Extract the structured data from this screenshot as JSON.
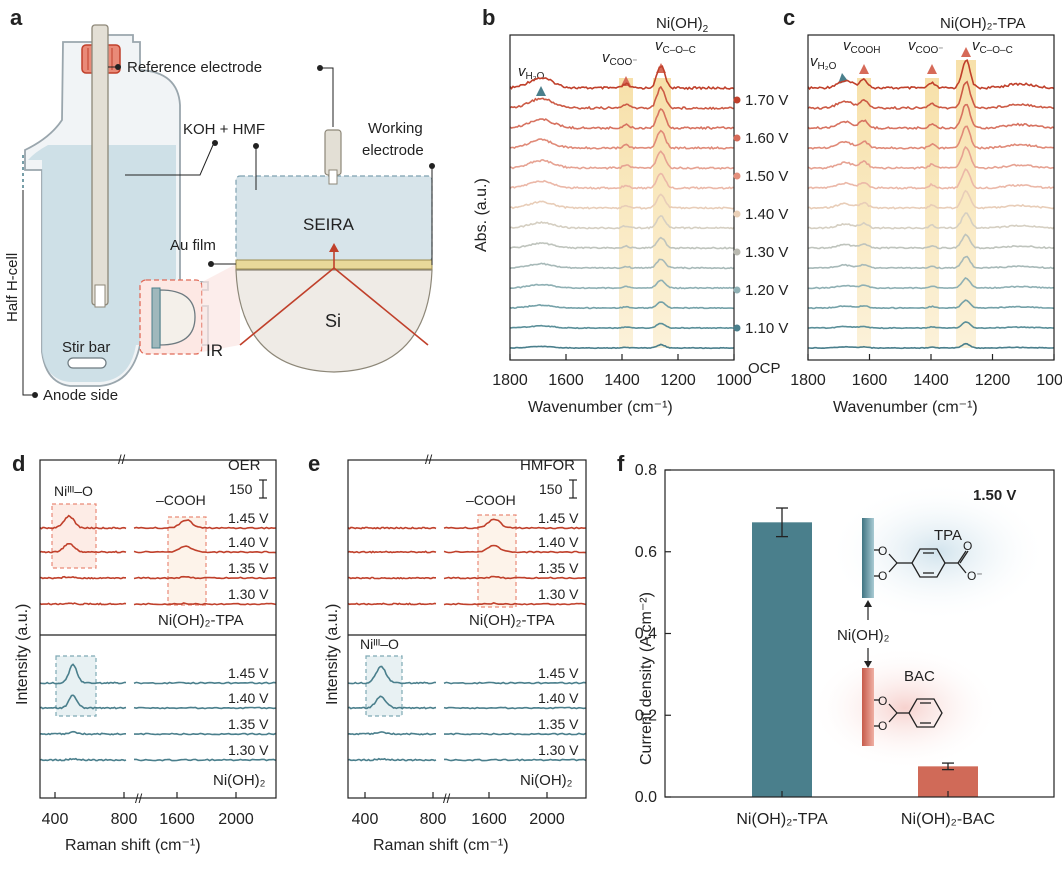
{
  "colors": {
    "red": "#c0402b",
    "teal": "#4a7f8c",
    "salmon": "#e98a78",
    "pink": "#f0b8a8",
    "sand": "#e6d4b8",
    "grey": "#9fb8bc",
    "highlight": "#f6dda0"
  },
  "panel_a": {
    "letter": "a",
    "reference_electrode": "Reference electrode",
    "koh_hmf": "KOH + HMF",
    "working_electrode": [
      "Working",
      "electrode"
    ],
    "seira": "SEIRA",
    "au_film": "Au film",
    "si": "Si",
    "ir": "IR",
    "stir_bar": "Stir bar",
    "half_h_cell": "Half H-cell",
    "anode_side": "Anode side"
  },
  "panel_b": {
    "letter": "b",
    "title_base": "Ni(OH)",
    "title_sub": "2",
    "peak_h2o": {
      "sym": "v",
      "sub": "H₂O"
    },
    "peak_coo": {
      "sym": "v",
      "sub": "COO⁻"
    },
    "peak_coc": {
      "sym": "v",
      "sub": "C–O–C"
    },
    "xlabel": "Wavenumber (cm⁻¹)",
    "ylabel": "Abs. (a.u.)",
    "xticks": [
      "1800",
      "1600",
      "1400",
      "1200",
      "1000"
    ]
  },
  "panel_c": {
    "letter": "c",
    "title": "Ni(OH)₂-TPA",
    "peak_h2o": {
      "sym": "v",
      "sub": "H₂O"
    },
    "peak_cooh": {
      "sym": "v",
      "sub": "COOH"
    },
    "peak_coo": {
      "sym": "v",
      "sub": "COO⁻"
    },
    "peak_coc": {
      "sym": "v",
      "sub": "C–O–C"
    },
    "xlabel": "Wavenumber (cm⁻¹)",
    "xticks": [
      "1800",
      "1600",
      "1400",
      "1200",
      "1000"
    ]
  },
  "potential_labels": [
    "1.70 V",
    "1.60 V",
    "1.50 V",
    "1.40 V",
    "1.30 V",
    "1.20 V",
    "1.10 V",
    "OCP"
  ],
  "panel_d": {
    "letter": "d",
    "title": "OER",
    "nio_label": "Niᴵᴵᴵ–O",
    "cooh_label": "–COOH",
    "scale": "150",
    "top_sample": "Ni(OH)₂-TPA",
    "bottom_sample": "Ni(OH)₂",
    "potentials": [
      "1.45 V",
      "1.40 V",
      "1.35 V",
      "1.30 V"
    ],
    "xticks": [
      "400",
      "800",
      "1600",
      "2000"
    ],
    "xlabel": "Raman shift (cm⁻¹)",
    "ylabel": "Intensity (a.u.)"
  },
  "panel_e": {
    "letter": "e",
    "title": "HMFOR",
    "nio_label": "Niᴵᴵᴵ–O",
    "cooh_label": "–COOH",
    "scale": "150",
    "top_sample": "Ni(OH)₂-TPA",
    "bottom_sample": "Ni(OH)₂",
    "potentials": [
      "1.45 V",
      "1.40 V",
      "1.35 V",
      "1.30 V"
    ],
    "xticks": [
      "400",
      "800",
      "1600",
      "2000"
    ],
    "xlabel": "Raman shift (cm⁻¹)",
    "ylabel": "Intensity (a.u.)"
  },
  "chart_data": {
    "type": "bar",
    "categories": [
      "Ni(OH)₂-TPA",
      "Ni(OH)₂-BAC"
    ],
    "values": [
      0.672,
      0.075
    ],
    "errors": [
      0.035,
      0.008
    ],
    "colors": [
      "#4a7f8c",
      "#d06a58"
    ],
    "annotation": "1.50 V",
    "ylabel": "Current density (A cm⁻²)",
    "ylim": [
      0.0,
      0.8
    ],
    "yticks": [
      "0.0",
      "0.2",
      "0.4",
      "0.6",
      "0.8"
    ],
    "letter": "f",
    "inset": {
      "tpa": "TPA",
      "bac": "BAC",
      "nioh": "Ni(OH)₂",
      "o": "O",
      "o_minus": "O⁻"
    }
  }
}
